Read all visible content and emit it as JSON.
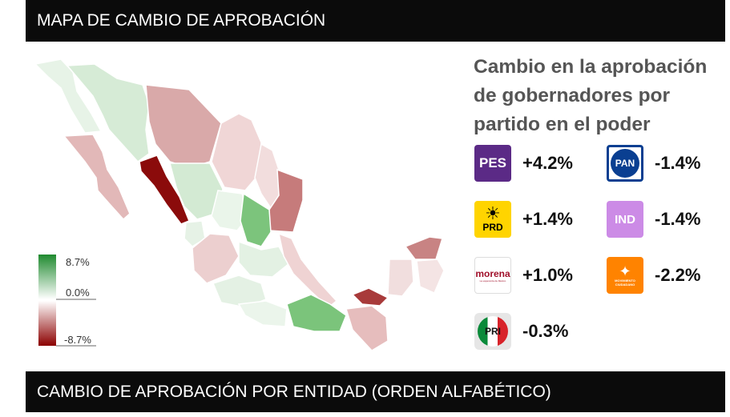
{
  "header": {
    "title": "MAPA DE CAMBIO DE APROBACIÓN"
  },
  "footer": {
    "title": "CAMBIO DE APROBACIÓN POR ENTIDAD (ORDEN ALFABÉTICO)"
  },
  "colors": {
    "positive": "#1f8a2f",
    "neutral": "#ffffff",
    "negative": "#8b0000"
  },
  "chart_data": {
    "type": "choropleth-map",
    "title": "Cambio en la aprobación de gobernadores por partido en el poder",
    "scale": {
      "labels": [
        "8.7%",
        "0.0%",
        "-8.7%"
      ],
      "min": -8.7,
      "max": 8.7
    },
    "parties": [
      {
        "logo": "PES",
        "value": "+4.2%",
        "color": "#5b2a86"
      },
      {
        "logo": "PAN",
        "value": "-1.4%",
        "color": "#0a3f91"
      },
      {
        "logo": "PRD",
        "value": "+1.4%",
        "color": "#ffd400"
      },
      {
        "logo": "IND",
        "value": "-1.4%",
        "color": "#cc8be6"
      },
      {
        "logo": "morena",
        "logo_subtext": "La esperanza de México",
        "value": "+1.0%",
        "color": "#a0102a"
      },
      {
        "logo": "MOVIMIENTO CIUDADANO",
        "value": "-2.2%",
        "color": "#ff8300"
      },
      {
        "logo": "PRI",
        "value": "-0.3%",
        "color": "#d8232a"
      }
    ]
  }
}
